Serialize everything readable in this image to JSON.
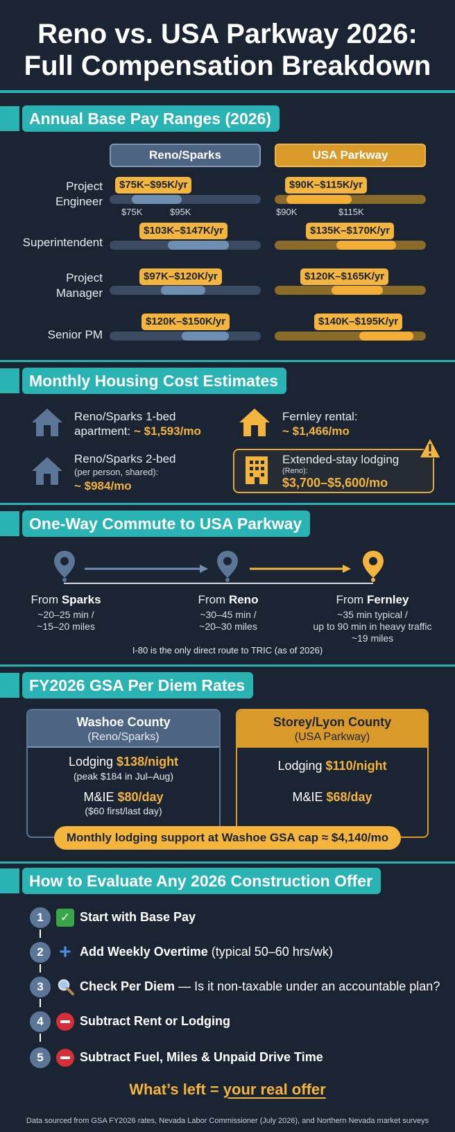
{
  "title_line1": "Reno vs. USA Parkway 2026:",
  "title_line2": "Full Compensation Breakdown",
  "base_pay": {
    "section_title": "Annual Base Pay Ranges (2026)",
    "col_reno": "Reno/Sparks",
    "col_usa": "USA Parkway",
    "roles": [
      {
        "name_line1": "Project",
        "name_line2": "Engineer",
        "reno": "$75K–$95K/yr",
        "usa": "$90K–$115K/yr",
        "reno_range": [
          75,
          95
        ],
        "usa_range": [
          90,
          115
        ]
      },
      {
        "name_line1": "Superintendent",
        "name_line2": "",
        "reno": "$103K–$147K/yr",
        "usa": "$135K–$170K/yr",
        "reno_range": [
          103,
          147
        ],
        "usa_range": [
          135,
          170
        ]
      },
      {
        "name_line1": "Project",
        "name_line2": "Manager",
        "reno": "$97K–$120K/yr",
        "usa": "$120K–$165K/yr",
        "reno_range": [
          97,
          120
        ],
        "usa_range": [
          120,
          165
        ]
      },
      {
        "name_line1": "Senior PM",
        "name_line2": "",
        "reno": "$120K–$150K/yr",
        "usa": "$140K–$195K/yr",
        "reno_range": [
          120,
          150
        ],
        "usa_range": [
          140,
          195
        ]
      }
    ],
    "ticks": {
      "reno_low": "$75K",
      "reno_high": "$95K",
      "usa_low": "$90K",
      "usa_high": "$115K"
    }
  },
  "housing": {
    "section_title": "Monthly Housing Cost Estimates",
    "reno1_line1": "Reno/Sparks 1-bed",
    "reno1_line2": "apartment:",
    "reno1_value": "~ $1,593/mo",
    "reno2_line1": "Reno/Sparks 2-bed",
    "reno2_line2": "(per person, shared):",
    "reno2_value": "~ $984/mo",
    "fernley_line1": "Fernley rental:",
    "fernley_value": "~ $1,466/mo",
    "lodging_line1": "Extended-stay lodging",
    "lodging_line2": "(Reno):",
    "lodging_value": "$3,700–$5,600/mo",
    "icon_colors": {
      "reno": "#5b7697",
      "fernley": "#f4b53f"
    }
  },
  "commute": {
    "section_title": "One-Way Commute to USA Parkway",
    "from_label": "From",
    "sparks_name": "Sparks",
    "sparks_line1": "~20–25 min /",
    "sparks_line2": "~15–20 miles",
    "reno_name": "Reno",
    "reno_line1": "~30–45 min /",
    "reno_line2": "~20–30 miles",
    "fernley_name": "Fernley",
    "fernley_line1": "~35 min typical /",
    "fernley_line2": "up to 90 min in heavy traffic",
    "fernley_line3": "~19 miles",
    "note": "I-80 is the only direct route to TRIC (as of 2026)"
  },
  "per_diem": {
    "section_title": "FY2026 GSA Per Diem Rates",
    "washoe_title": "Washoe County",
    "washoe_sub": "(Reno/Sparks)",
    "washoe_lodging_label": "Lodging",
    "washoe_lodging_value": "$138/night",
    "washoe_lodging_note": "(peak $184 in Jul–Aug)",
    "washoe_mie_label": "M&IE",
    "washoe_mie_value": "$80/day",
    "washoe_mie_note": "($60 first/last day)",
    "storey_title": "Storey/Lyon County",
    "storey_sub": "(USA Parkway)",
    "storey_lodging_label": "Lodging",
    "storey_lodging_value": "$110/night",
    "storey_mie_label": "M&IE",
    "storey_mie_value": "$68/day",
    "banner": "Monthly lodging support at Washoe GSA cap ≈ $4,140/mo"
  },
  "evaluate": {
    "section_title": "How to Evaluate Any 2026 Construction Offer",
    "steps": [
      {
        "num": "1",
        "bold": "Start with Base Pay",
        "rest": "",
        "icon": "check-icon"
      },
      {
        "num": "2",
        "bold": "Add Weekly Overtime",
        "rest": " (typical 50–60 hrs/wk)",
        "icon": "plus-icon"
      },
      {
        "num": "3",
        "bold": "Check Per Diem",
        "rest": " — Is it non-taxable under an accountable plan?",
        "icon": "magnifier-icon"
      },
      {
        "num": "4",
        "bold": "Subtract Rent or Lodging",
        "rest": "",
        "icon": "minus-icon"
      },
      {
        "num": "5",
        "bold": "Subtract Fuel, Miles & Unpaid Drive Time",
        "rest": "",
        "icon": "minus-icon"
      }
    ],
    "real_prefix": "What’s left = ",
    "real_emph": "your real offer"
  },
  "footer": "Data sourced from GSA FY2026 rates, Nevada Labor Commissioner (July 2026), and Northern Nevada market surveys",
  "colors": {
    "teal": "#2ab3b3",
    "gold": "#f4b53f",
    "steel": "#5b7697",
    "background": "#1b2433"
  }
}
